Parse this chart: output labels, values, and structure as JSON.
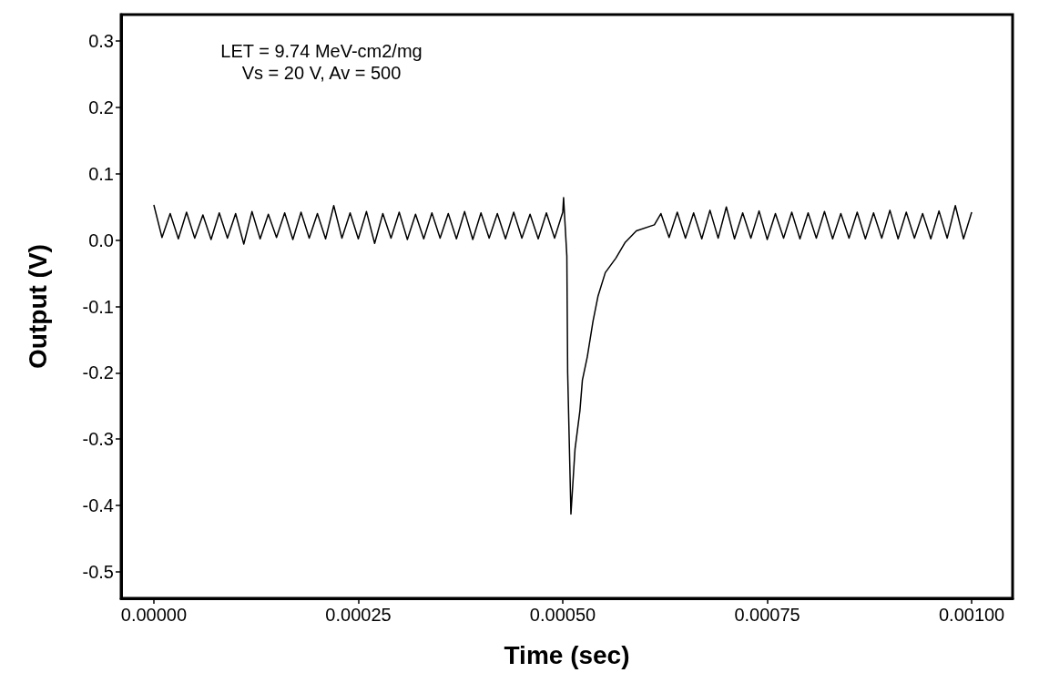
{
  "chart_data": {
    "type": "line",
    "xlabel": "Time (sec)",
    "ylabel": "Output (V)",
    "annotations": [
      "LET = 9.74 MeV-cm2/mg",
      "Vs = 20 V, Av = 500"
    ],
    "xlim": [
      -4e-05,
      0.00105
    ],
    "ylim": [
      -0.54,
      0.34
    ],
    "xticks": [
      {
        "value": 0,
        "label": "0.00000"
      },
      {
        "value": 0.00025,
        "label": "0.00025"
      },
      {
        "value": 0.0005,
        "label": "0.00050"
      },
      {
        "value": 0.00075,
        "label": "0.00075"
      },
      {
        "value": 0.001,
        "label": "0.00100"
      }
    ],
    "yticks": [
      {
        "value": -0.5,
        "label": "-0.5"
      },
      {
        "value": -0.4,
        "label": "-0.4"
      },
      {
        "value": -0.3,
        "label": "-0.3"
      },
      {
        "value": -0.2,
        "label": "-0.2"
      },
      {
        "value": -0.1,
        "label": "-0.1"
      },
      {
        "value": 0,
        "label": "0.0"
      },
      {
        "value": 0.1,
        "label": "0.1"
      },
      {
        "value": 0.2,
        "label": "0.2"
      },
      {
        "value": 0.3,
        "label": "0.3"
      }
    ],
    "grid": false,
    "marker": "none",
    "line_style": "solid",
    "series": [
      {
        "color": "#000000",
        "x": [
          0,
          1e-05,
          2e-05,
          3e-05,
          4e-05,
          5e-05,
          6e-05,
          7e-05,
          8e-05,
          9e-05,
          0.0001,
          0.00011,
          0.00012,
          0.00013,
          0.00014,
          0.00015,
          0.00016,
          0.00017,
          0.00018,
          0.00019,
          0.0002,
          0.00021,
          0.00022,
          0.00023,
          0.00024,
          0.00025,
          0.00026,
          0.00027,
          0.00028,
          0.00029,
          0.0003,
          0.00031,
          0.00032,
          0.00033,
          0.00034,
          0.00035,
          0.00036,
          0.00037,
          0.00038,
          0.00039,
          0.0004,
          0.00041,
          0.00042,
          0.00043,
          0.00044,
          0.00045,
          0.00046,
          0.00047,
          0.00048,
          0.00049,
          0.0005,
          0.000501,
          0.000505,
          0.000506,
          0.00051,
          0.000515,
          0.000521,
          0.000524,
          0.00053,
          0.000537,
          0.000543,
          0.000552,
          0.000565,
          0.000576,
          0.00059,
          0.000612,
          0.00062,
          0.00063,
          0.00064,
          0.00065,
          0.00066,
          0.00067,
          0.00068,
          0.00069,
          0.0007,
          0.00071,
          0.00072,
          0.00073,
          0.00074,
          0.00075,
          0.00076,
          0.00077,
          0.00078,
          0.00079,
          0.0008,
          0.00081,
          0.00082,
          0.00083,
          0.00084,
          0.00085,
          0.00086,
          0.00087,
          0.00088,
          0.00089,
          0.0009,
          0.00091,
          0.00092,
          0.00093,
          0.00094,
          0.00095,
          0.00096,
          0.00097,
          0.00098,
          0.00099,
          0.001
        ],
        "values": [
          0.053,
          0.004,
          0.04,
          0.002,
          0.042,
          0.003,
          0.038,
          0.001,
          0.041,
          0.003,
          0.04,
          -0.006,
          0.043,
          0.002,
          0.039,
          0.004,
          0.041,
          0.001,
          0.042,
          0.003,
          0.04,
          0.002,
          0.052,
          0.003,
          0.041,
          0.002,
          0.043,
          -0.005,
          0.04,
          0.003,
          0.042,
          0.001,
          0.039,
          0.002,
          0.041,
          0.003,
          0.04,
          0.002,
          0.043,
          0.001,
          0.041,
          0.003,
          0.04,
          0.002,
          0.042,
          0.003,
          0.039,
          0.002,
          0.041,
          0.003,
          0.042,
          0.064,
          -0.024,
          -0.2,
          -0.413,
          -0.315,
          -0.257,
          -0.211,
          -0.176,
          -0.122,
          -0.085,
          -0.049,
          -0.027,
          -0.004,
          0.014,
          0.023,
          0.04,
          0.004,
          0.042,
          0.003,
          0.041,
          0.002,
          0.045,
          0.003,
          0.05,
          0.002,
          0.041,
          0.003,
          0.044,
          0.001,
          0.04,
          0.003,
          0.042,
          0.002,
          0.041,
          0.003,
          0.043,
          0.002,
          0.04,
          0.003,
          0.042,
          0.002,
          0.041,
          0.003,
          0.045,
          0.002,
          0.042,
          0.003,
          0.04,
          0.002,
          0.044,
          0.003,
          0.052,
          0.002,
          0.042
        ]
      }
    ]
  }
}
